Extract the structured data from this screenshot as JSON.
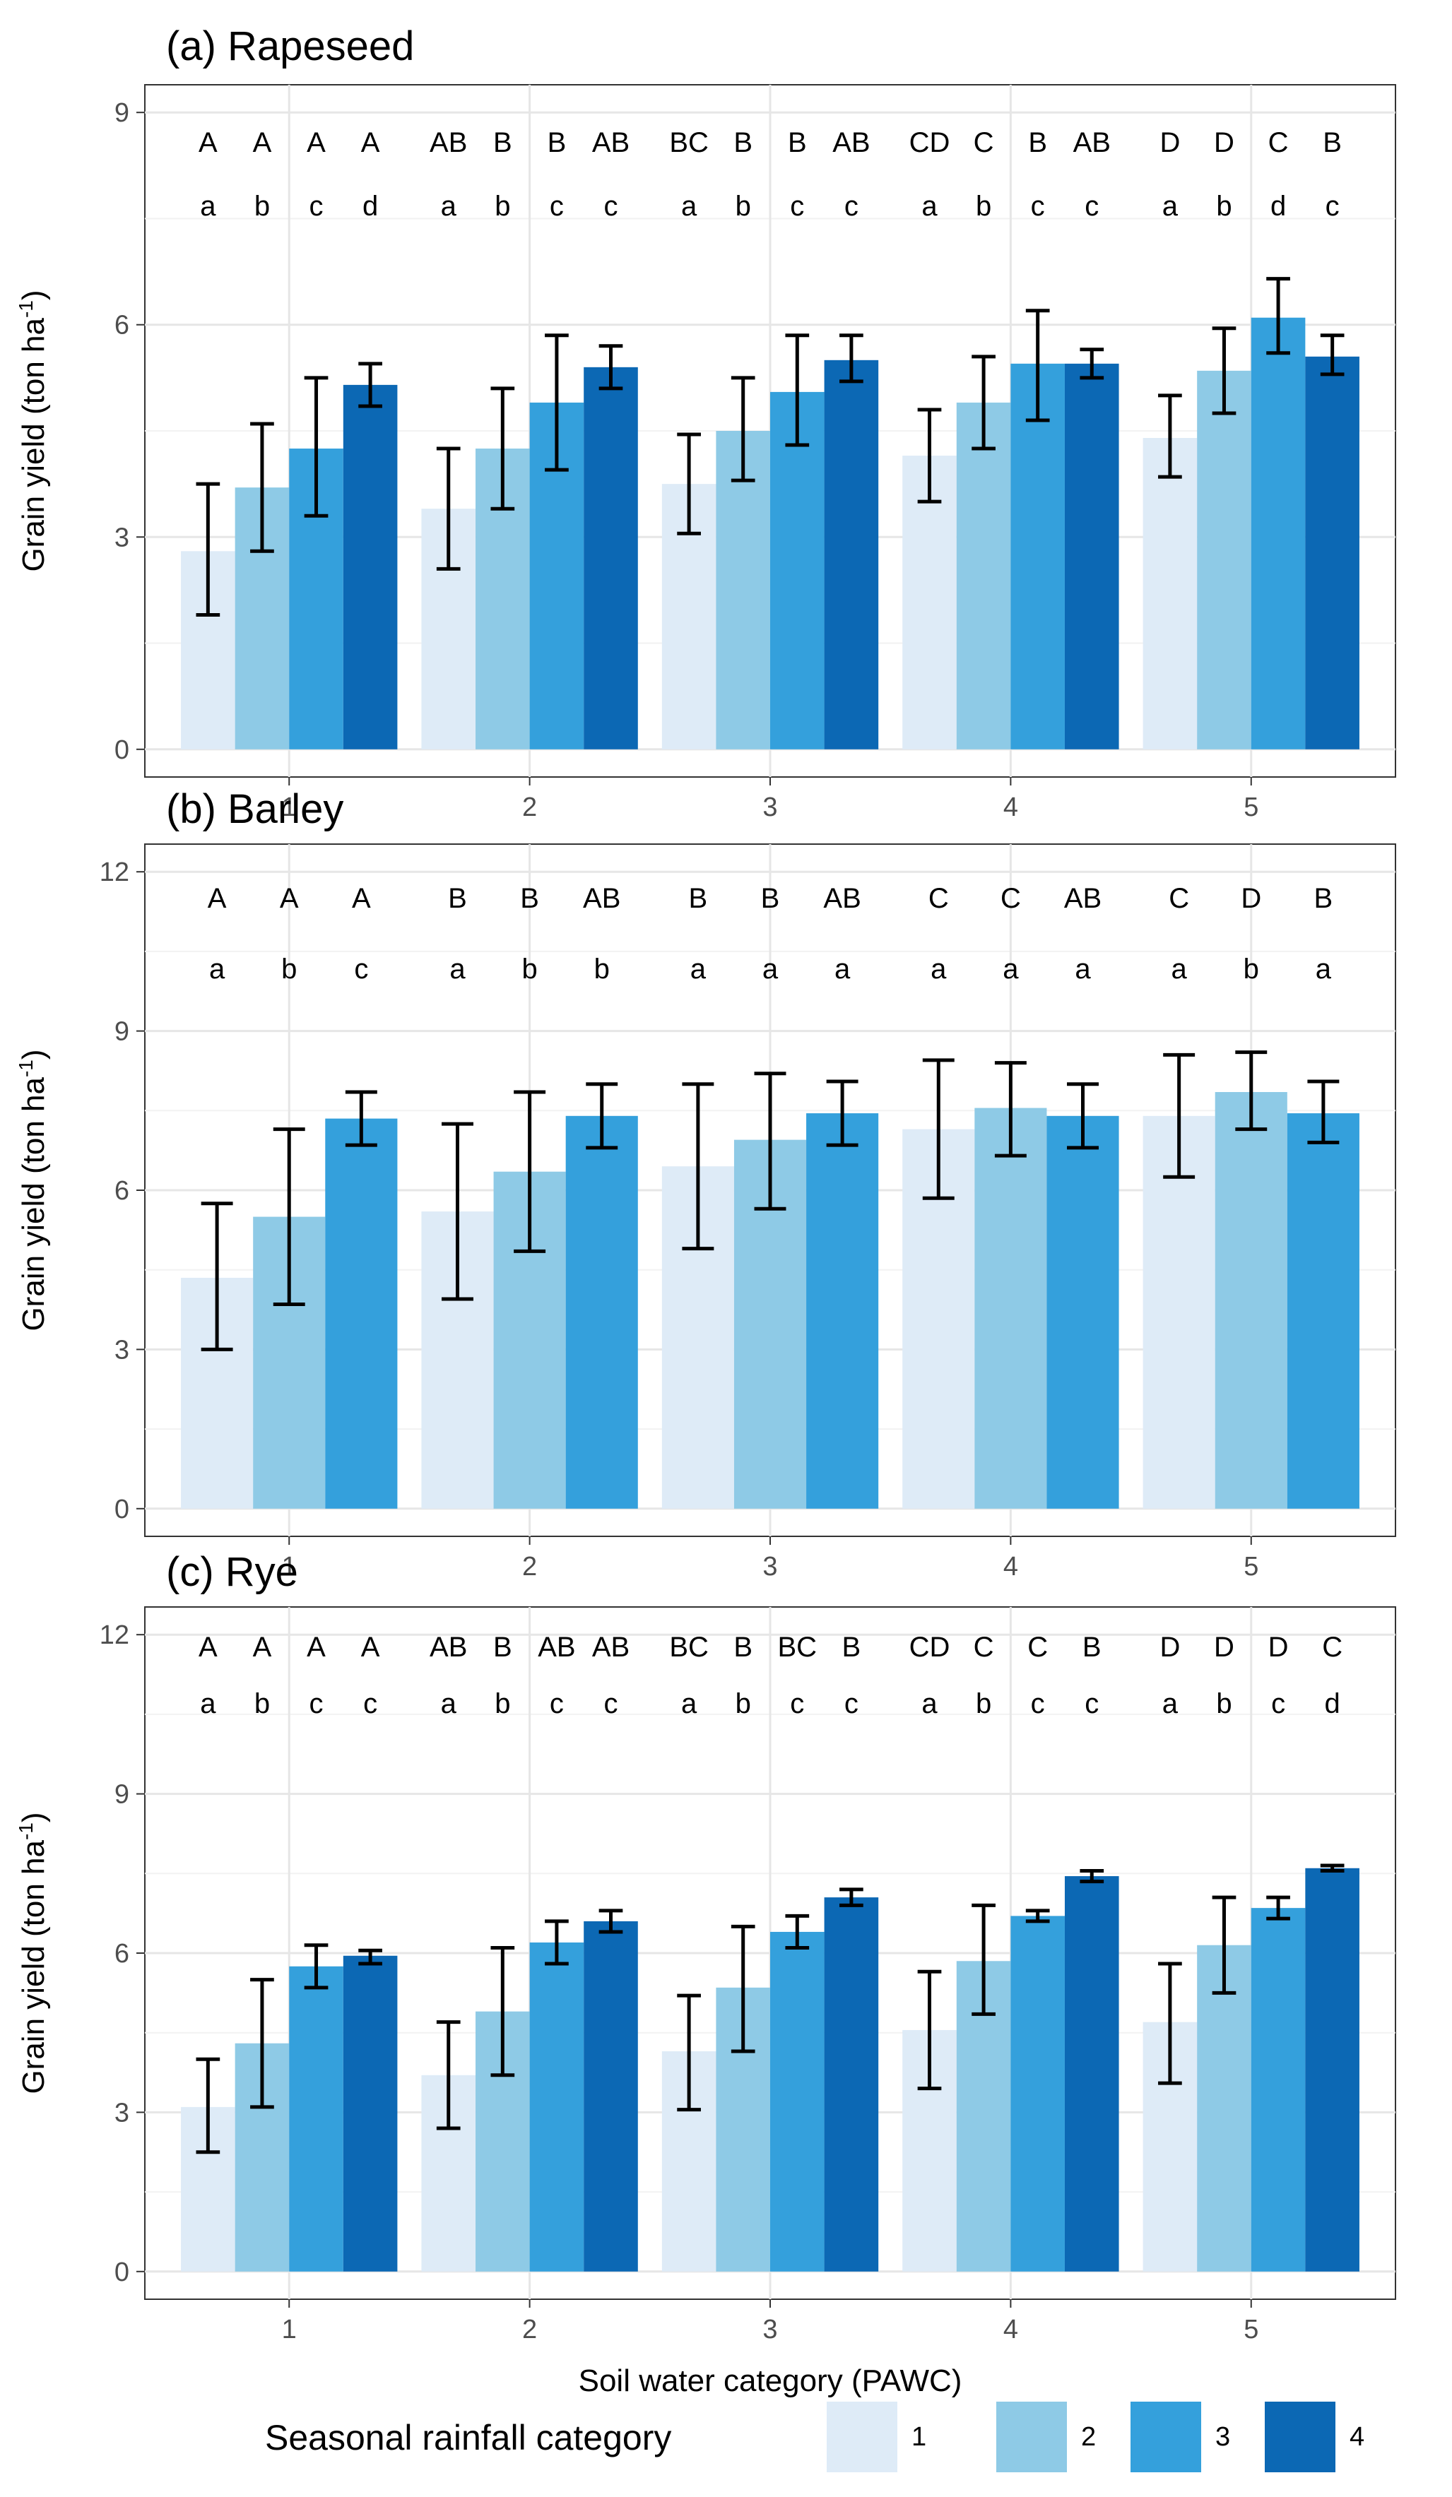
{
  "chart_data": [
    {
      "type": "bar",
      "title": "(a) Rapeseed",
      "ylabel": "Grain yield (ton ha",
      "ylabel_sup": "-1",
      "ylabel_end": ")",
      "xlabel": "",
      "ylim": [
        0,
        9
      ],
      "yticks": [
        "0",
        "3",
        "6",
        "9"
      ],
      "ytick_values": [
        0,
        3,
        6,
        9
      ],
      "categories": [
        "1",
        "2",
        "3",
        "4",
        "5"
      ],
      "series": [
        {
          "name": "1",
          "values": [
            2.8,
            3.4,
            3.75,
            4.15,
            4.4
          ],
          "err_low": [
            1.9,
            2.55,
            3.05,
            3.5,
            3.85
          ],
          "err_high": [
            3.75,
            4.25,
            4.45,
            4.8,
            5.0
          ]
        },
        {
          "name": "2",
          "values": [
            3.7,
            4.25,
            4.5,
            4.9,
            5.35
          ],
          "err_low": [
            2.8,
            3.4,
            3.8,
            4.25,
            4.75
          ],
          "err_high": [
            4.6,
            5.1,
            5.25,
            5.55,
            5.95
          ]
        },
        {
          "name": "3",
          "values": [
            4.25,
            4.9,
            5.05,
            5.45,
            6.1
          ],
          "err_low": [
            3.3,
            3.95,
            4.3,
            4.65,
            5.6
          ],
          "err_high": [
            5.25,
            5.85,
            5.85,
            6.2,
            6.65
          ]
        },
        {
          "name": "4",
          "values": [
            5.15,
            5.4,
            5.5,
            5.45,
            5.55
          ],
          "err_low": [
            4.85,
            5.1,
            5.2,
            5.25,
            5.3
          ],
          "err_high": [
            5.45,
            5.7,
            5.85,
            5.65,
            5.85
          ]
        }
      ],
      "letters_upper": [
        [
          "A",
          "A",
          "A",
          "A"
        ],
        [
          "AB",
          "B",
          "B",
          "AB"
        ],
        [
          "BC",
          "B",
          "B",
          "AB"
        ],
        [
          "CD",
          "C",
          "B",
          "AB"
        ],
        [
          "D",
          "D",
          "C",
          "B"
        ]
      ],
      "letters_lower": [
        [
          "a",
          "b",
          "c",
          "d"
        ],
        [
          "a",
          "b",
          "c",
          "c"
        ],
        [
          "a",
          "b",
          "c",
          "c"
        ],
        [
          "a",
          "b",
          "c",
          "c"
        ],
        [
          "a",
          "b",
          "d",
          "c"
        ]
      ]
    },
    {
      "type": "bar",
      "title": "(b) Barley",
      "ylabel": "Grain yield (ton ha",
      "ylabel_sup": "-1",
      "ylabel_end": ")",
      "xlabel": "",
      "ylim": [
        0,
        12
      ],
      "yticks": [
        "0",
        "3",
        "6",
        "9",
        "12"
      ],
      "ytick_values": [
        0,
        3,
        6,
        9,
        12
      ],
      "categories": [
        "1",
        "2",
        "3",
        "4",
        "5"
      ],
      "series": [
        {
          "name": "1",
          "values": [
            4.35,
            5.6,
            6.45,
            7.15,
            7.4
          ],
          "err_low": [
            3.0,
            3.95,
            4.9,
            5.85,
            6.25
          ],
          "err_high": [
            5.75,
            7.25,
            8.0,
            8.45,
            8.55
          ]
        },
        {
          "name": "2",
          "values": [
            5.5,
            6.35,
            6.95,
            7.55,
            7.85
          ],
          "err_low": [
            3.85,
            4.85,
            5.65,
            6.65,
            7.15
          ],
          "err_high": [
            7.15,
            7.85,
            8.2,
            8.4,
            8.6
          ]
        },
        {
          "name": "3",
          "values": [
            7.35,
            7.4,
            7.45,
            7.4,
            7.45
          ],
          "err_low": [
            6.85,
            6.8,
            6.85,
            6.8,
            6.9
          ],
          "err_high": [
            7.85,
            8.0,
            8.05,
            8.0,
            8.05
          ]
        }
      ],
      "letters_upper": [
        [
          "A",
          "A",
          "A"
        ],
        [
          "B",
          "B",
          "AB"
        ],
        [
          "B",
          "B",
          "AB"
        ],
        [
          "C",
          "C",
          "AB"
        ],
        [
          "C",
          "D",
          "B"
        ]
      ],
      "letters_lower": [
        [
          "a",
          "b",
          "c"
        ],
        [
          "a",
          "b",
          "b"
        ],
        [
          "a",
          "a",
          "a"
        ],
        [
          "a",
          "a",
          "a"
        ],
        [
          "a",
          "b",
          "a"
        ]
      ]
    },
    {
      "type": "bar",
      "title": "(c) Rye",
      "ylabel": "Grain yield (ton ha",
      "ylabel_sup": "-1",
      "ylabel_end": ")",
      "xlabel": "Soil water category (PAWC)",
      "ylim": [
        0,
        12
      ],
      "yticks": [
        "0",
        "3",
        "6",
        "9",
        "12"
      ],
      "ytick_values": [
        0,
        3,
        6,
        9,
        12
      ],
      "categories": [
        "1",
        "2",
        "3",
        "4",
        "5"
      ],
      "series": [
        {
          "name": "1",
          "values": [
            3.1,
            3.7,
            4.15,
            4.55,
            4.7
          ],
          "err_low": [
            2.25,
            2.7,
            3.05,
            3.45,
            3.55
          ],
          "err_high": [
            4.0,
            4.7,
            5.2,
            5.65,
            5.8
          ]
        },
        {
          "name": "2",
          "values": [
            4.3,
            4.9,
            5.35,
            5.85,
            6.15
          ],
          "err_low": [
            3.1,
            3.7,
            4.15,
            4.85,
            5.25
          ],
          "err_high": [
            5.5,
            6.1,
            6.5,
            6.9,
            7.05
          ]
        },
        {
          "name": "3",
          "values": [
            5.75,
            6.2,
            6.4,
            6.7,
            6.85
          ],
          "err_low": [
            5.35,
            5.8,
            6.1,
            6.6,
            6.65
          ],
          "err_high": [
            6.15,
            6.6,
            6.7,
            6.8,
            7.05
          ]
        },
        {
          "name": "4",
          "values": [
            5.95,
            6.6,
            7.05,
            7.45,
            7.6
          ],
          "err_low": [
            5.8,
            6.4,
            6.9,
            7.35,
            7.55
          ],
          "err_high": [
            6.05,
            6.8,
            7.2,
            7.55,
            7.65
          ]
        }
      ],
      "letters_upper": [
        [
          "A",
          "A",
          "A",
          "A"
        ],
        [
          "AB",
          "B",
          "AB",
          "AB"
        ],
        [
          "BC",
          "B",
          "BC",
          "B"
        ],
        [
          "CD",
          "C",
          "C",
          "B"
        ],
        [
          "D",
          "D",
          "D",
          "C"
        ]
      ],
      "letters_lower": [
        [
          "a",
          "b",
          "c",
          "c"
        ],
        [
          "a",
          "b",
          "c",
          "c"
        ],
        [
          "a",
          "b",
          "c",
          "c"
        ],
        [
          "a",
          "b",
          "c",
          "c"
        ],
        [
          "a",
          "b",
          "c",
          "d"
        ]
      ]
    }
  ],
  "legend": {
    "title": "Seasonal rainfall category",
    "items": [
      {
        "label": "1",
        "color": "#deebf7"
      },
      {
        "label": "2",
        "color": "#8ecae6"
      },
      {
        "label": "3",
        "color": "#34a0dc"
      },
      {
        "label": "4",
        "color": "#0c68b4"
      }
    ]
  }
}
